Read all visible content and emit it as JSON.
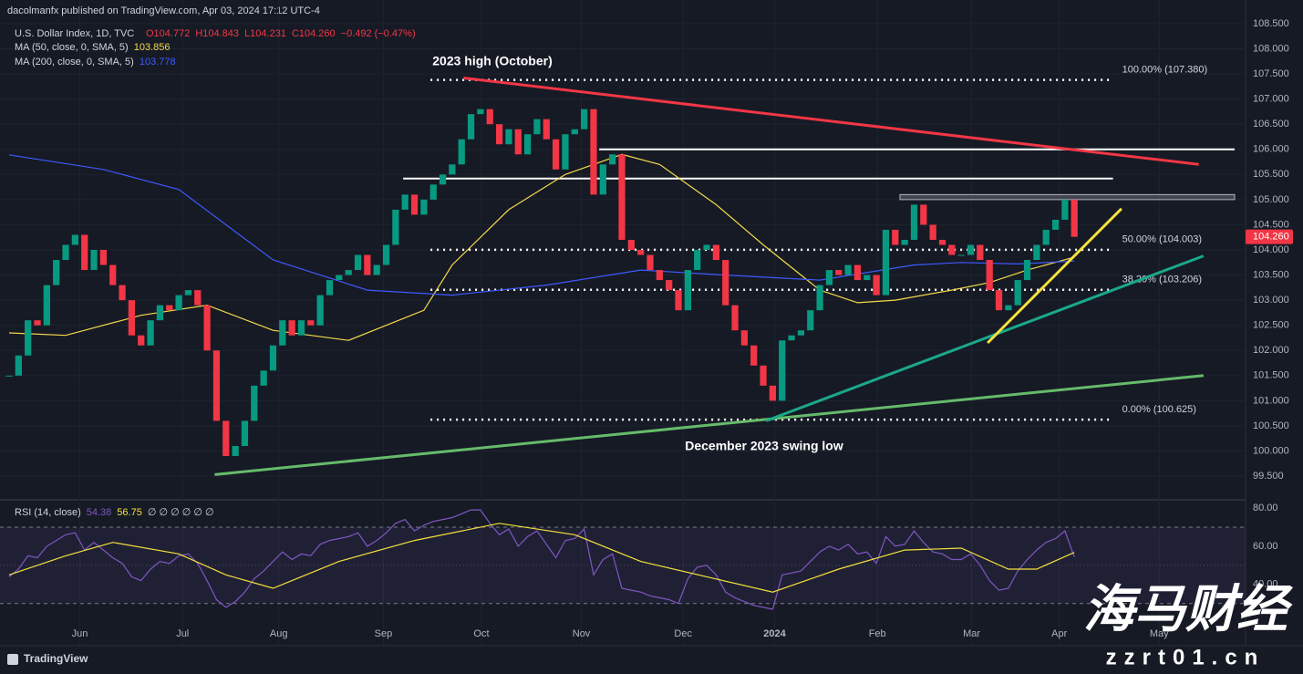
{
  "header": {
    "publisher": "dacolmanfx published on TradingView.com, Apr 03, 2024 17:12 UTC-4"
  },
  "branding": {
    "logo": "TradingView"
  },
  "watermark": {
    "name": "海马财经",
    "site": "zzrt01.cn"
  },
  "chart_data": [
    {
      "type": "candlestick",
      "title": "U.S. Dollar Index, 1D, TVC",
      "ohlc_legend": [
        "O104.772",
        "H104.843",
        "L104.231",
        "C104.260",
        "−0.492 (−0.47%)"
      ],
      "values": [
        101.5,
        101.9,
        102.6,
        102.5,
        103.3,
        103.8,
        104.1,
        104.3,
        103.6,
        104.0,
        103.7,
        103.3,
        103.0,
        102.3,
        102.1,
        102.6,
        102.9,
        102.8,
        103.1,
        103.2,
        102.9,
        102.0,
        100.6,
        99.9,
        100.1,
        100.6,
        101.3,
        101.6,
        102.1,
        102.6,
        102.3,
        102.6,
        102.5,
        103.1,
        103.4,
        103.5,
        103.6,
        103.9,
        103.5,
        103.7,
        104.1,
        104.8,
        105.1,
        104.7,
        105.0,
        105.3,
        105.5,
        105.7,
        106.2,
        106.7,
        106.8,
        106.5,
        106.1,
        106.4,
        105.9,
        106.3,
        106.6,
        106.2,
        105.6,
        106.3,
        106.4,
        106.8,
        105.1,
        105.7,
        105.9,
        104.2,
        104.0,
        103.9,
        103.6,
        103.4,
        103.2,
        102.8,
        103.6,
        104.0,
        104.1,
        103.8,
        102.9,
        102.4,
        102.1,
        101.7,
        101.3,
        101.0,
        102.2,
        102.3,
        102.4,
        102.8,
        103.3,
        103.6,
        103.5,
        103.7,
        103.4,
        103.5,
        103.1,
        104.4,
        104.1,
        104.2,
        104.9,
        104.5,
        104.2,
        104.1,
        103.9,
        103.9,
        104.1,
        103.8,
        103.2,
        102.8,
        102.9,
        103.4,
        103.8,
        104.1,
        104.4,
        104.6,
        105.0,
        104.26
      ],
      "up_color": "#089981",
      "down_color": "#f23645",
      "price_tag": {
        "value": 104.26,
        "label": "104.260"
      },
      "series": [
        {
          "name": "MA (50, close, 0, SMA, 5)",
          "legend_value": "103.856",
          "color": "#f5d94a",
          "x": [
            0,
            6,
            14,
            21,
            28,
            36,
            44,
            47,
            53,
            59,
            65,
            69,
            75,
            80,
            86,
            90,
            94,
            100,
            104,
            108,
            113
          ],
          "values": [
            102.35,
            102.3,
            102.7,
            102.9,
            102.4,
            102.2,
            102.8,
            103.7,
            104.8,
            105.5,
            105.9,
            105.7,
            104.9,
            104.1,
            103.2,
            102.95,
            103.0,
            103.2,
            103.35,
            103.6,
            103.856
          ]
        },
        {
          "name": "MA (200, close, 0, SMA, 5)",
          "legend_value": "103.778",
          "color": "#3d5afe",
          "x": [
            0,
            10,
            18,
            28,
            38,
            47,
            57,
            67,
            76,
            86,
            96,
            101,
            107,
            113
          ],
          "values": [
            105.89,
            105.6,
            105.2,
            103.8,
            103.2,
            103.1,
            103.3,
            103.6,
            103.5,
            103.4,
            103.7,
            103.75,
            103.72,
            103.778
          ]
        }
      ],
      "fib_levels": [
        {
          "value": 107.38,
          "label": "100.00% (107.380)"
        },
        {
          "value": 104.003,
          "label": "50.00% (104.003)"
        },
        {
          "value": 103.206,
          "label": "38.20% (103.206)"
        },
        {
          "value": 100.625,
          "label": "0.00% (100.625)"
        }
      ],
      "fib_x": [
        44.7,
        117.1
      ],
      "hlines": [
        {
          "value": 105.42,
          "x": [
            41.8,
            117.1
          ],
          "color": "#ffffff"
        },
        {
          "value": 106.0,
          "x": [
            62.6,
            130
          ],
          "color": "#ffffff"
        }
      ],
      "zone": {
        "values": [
          105.0,
          105.1
        ],
        "x": [
          94.5,
          130
        ],
        "color": "#787b86"
      },
      "trendlines": [
        {
          "x": [
            48.2,
            126.2
          ],
          "values": [
            107.42,
            105.7
          ],
          "color": "#f23645"
        },
        {
          "x": [
            21.8,
            126.7
          ],
          "values": [
            99.53,
            101.5
          ],
          "color": "#66bb6a"
        },
        {
          "x": [
            80.3,
            126.7
          ],
          "values": [
            100.6,
            103.88
          ],
          "color": "#1aa88a"
        },
        {
          "x": [
            103.8,
            118
          ],
          "values": [
            102.15,
            104.82
          ],
          "color": "#f5e13c"
        }
      ],
      "annotations": [
        "2023 high (October)",
        "December 2023 swing low"
      ],
      "xlim": [
        0,
        130
      ],
      "xticks": [
        {
          "value": 7.5,
          "label": "Jun"
        },
        {
          "value": 18.4,
          "label": "Jul"
        },
        {
          "value": 28.6,
          "label": "Aug"
        },
        {
          "value": 39.7,
          "label": "Sep"
        },
        {
          "value": 50.1,
          "label": "Oct"
        },
        {
          "value": 60.7,
          "label": "Nov"
        },
        {
          "value": 71.5,
          "label": "Dec"
        },
        {
          "value": 81.2,
          "label": "2024"
        },
        {
          "value": 92.1,
          "label": "Feb"
        },
        {
          "value": 102.1,
          "label": "Mar"
        },
        {
          "value": 111.4,
          "label": "Apr"
        },
        {
          "value": 122,
          "label": "May"
        }
      ],
      "ylim": [
        99.03,
        108.97
      ],
      "yticks": [
        {
          "value": 99.5,
          "label": "99.500"
        },
        {
          "value": 100,
          "label": "100.000"
        },
        {
          "value": 100.5,
          "label": "100.500"
        },
        {
          "value": 101,
          "label": "101.000"
        },
        {
          "value": 101.5,
          "label": "101.500"
        },
        {
          "value": 102,
          "label": "102.000"
        },
        {
          "value": 102.5,
          "label": "102.500"
        },
        {
          "value": 103,
          "label": "103.000"
        },
        {
          "value": 103.5,
          "label": "103.500"
        },
        {
          "value": 104,
          "label": "104.000"
        },
        {
          "value": 104.5,
          "label": "104.500"
        },
        {
          "value": 105,
          "label": "105.000"
        },
        {
          "value": 105.5,
          "label": "105.500"
        },
        {
          "value": 106,
          "label": "106.000"
        },
        {
          "value": 106.5,
          "label": "106.500"
        },
        {
          "value": 107,
          "label": "107.000"
        },
        {
          "value": 107.5,
          "label": "107.500"
        },
        {
          "value": 108,
          "label": "108.000"
        },
        {
          "value": 108.5,
          "label": "108.500"
        }
      ]
    },
    {
      "type": "line",
      "title": "RSI (14, close)",
      "null_markers": "∅ ∅ ∅ ∅ ∅ ∅",
      "series": [
        {
          "legend_value": "54.38",
          "color": "#7e57c2",
          "values": [
            44,
            48,
            55,
            54,
            60,
            63,
            66,
            67,
            58,
            62,
            58,
            54,
            51,
            44,
            42,
            48,
            52,
            51,
            55,
            56,
            51,
            42,
            32,
            28,
            31,
            36,
            43,
            47,
            52,
            57,
            53,
            56,
            55,
            61,
            63,
            64,
            65,
            67,
            60,
            63,
            67,
            72,
            74,
            68,
            71,
            73,
            74,
            75,
            77,
            79,
            79,
            72,
            66,
            69,
            60,
            65,
            68,
            61,
            54,
            63,
            64,
            69,
            45,
            53,
            56,
            38,
            37,
            36,
            34,
            33,
            32,
            30,
            43,
            49,
            50,
            45,
            36,
            33,
            31,
            29,
            28,
            27,
            45,
            46,
            47,
            52,
            57,
            60,
            58,
            61,
            56,
            57,
            51,
            65,
            60,
            61,
            68,
            62,
            57,
            56,
            53,
            53,
            56,
            50,
            42,
            37,
            38,
            47,
            53,
            58,
            62,
            64,
            68,
            54.38
          ]
        },
        {
          "legend_value": "56.75",
          "color": "#f5e13c",
          "x": [
            0,
            6,
            11,
            18,
            23,
            28,
            35,
            43,
            52,
            60,
            67,
            74,
            81,
            88,
            95,
            101,
            106,
            109,
            113
          ],
          "values": [
            45,
            55,
            62,
            56,
            45,
            38,
            52,
            63,
            72,
            66,
            52,
            44,
            36,
            48,
            58,
            59,
            48,
            48,
            56.75
          ]
        }
      ],
      "band": [
        30,
        70
      ],
      "midline": 50,
      "xlim": [
        0,
        130
      ],
      "ylim": [
        27,
        84.3
      ],
      "yticks": [
        {
          "value": 40,
          "label": "40.00"
        },
        {
          "value": 60,
          "label": "60.00"
        },
        {
          "value": 80,
          "label": "80.00"
        }
      ]
    }
  ]
}
